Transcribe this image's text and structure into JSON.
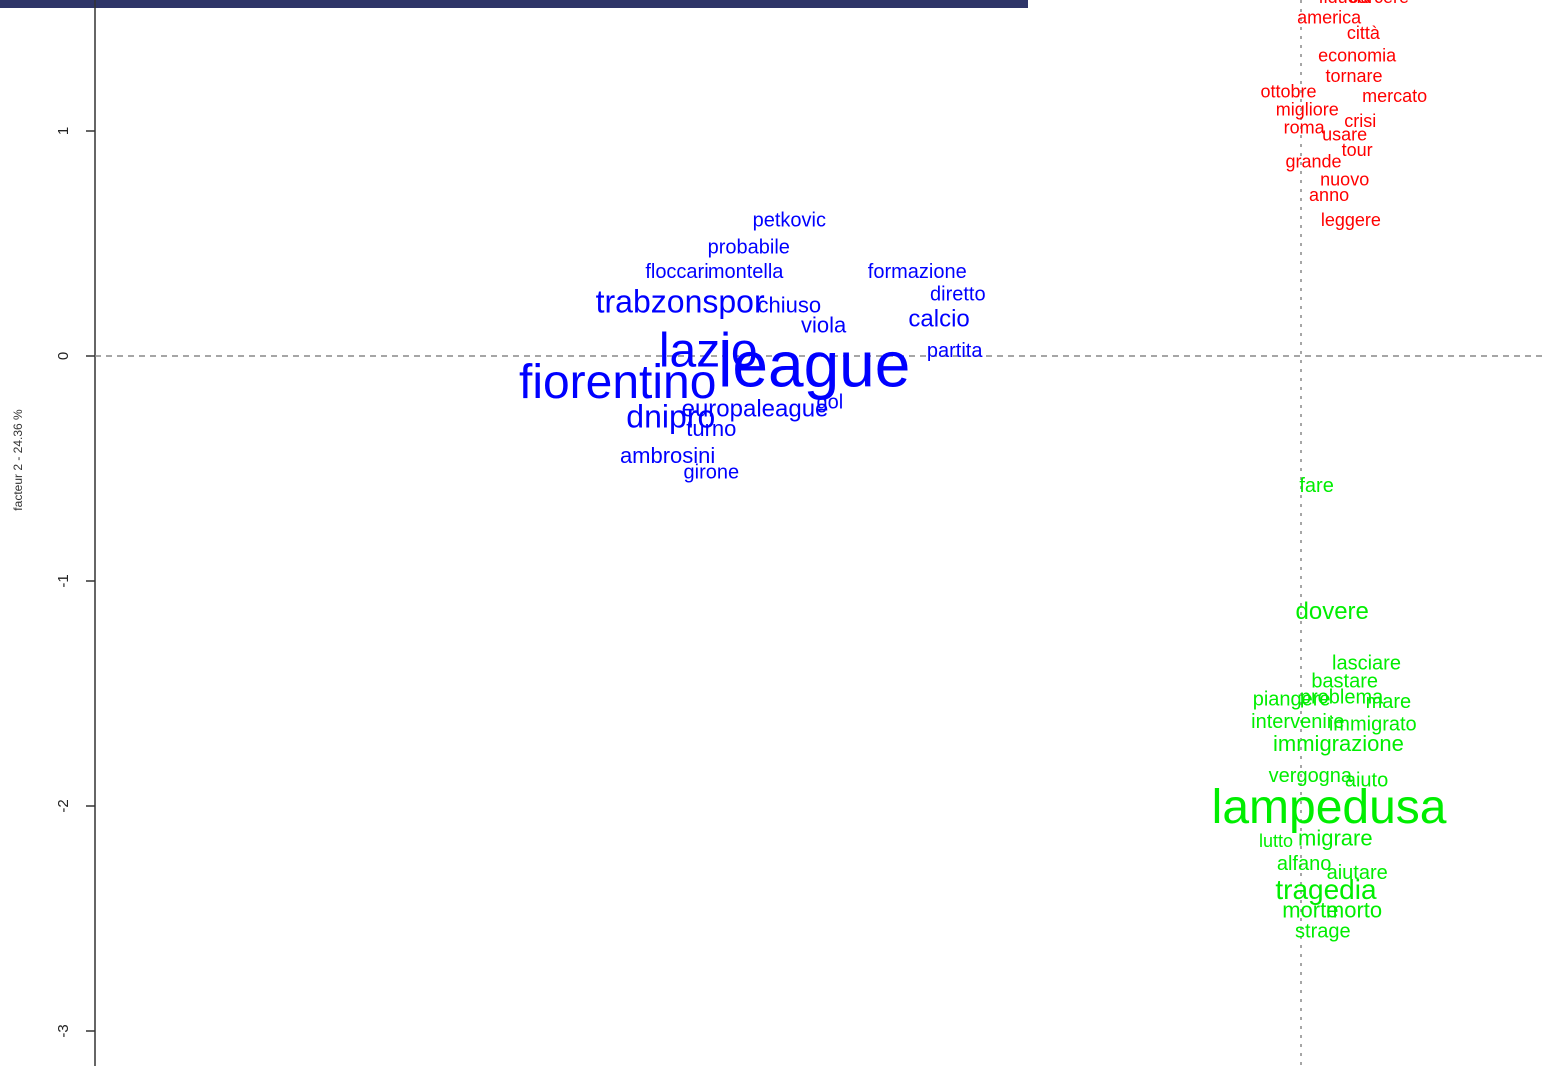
{
  "chart_data": {
    "type": "scatter",
    "subtype": "word-map",
    "title": "",
    "xlabel": "",
    "ylabel": "facteur 2 - 24.36 %",
    "ylim": [
      -3.2,
      1.6
    ],
    "xlim": [
      -2.8,
      1.1
    ],
    "yticks": [
      1,
      0,
      -1,
      -2,
      -3
    ],
    "ytick_labels": [
      "1",
      "0",
      "-1",
      "-2",
      "-3"
    ],
    "reference_lines": {
      "x": 0,
      "y": 0,
      "style": "dashed"
    },
    "grid": false,
    "legend": "none",
    "colors": {
      "sport": "#0000ff",
      "general": "#ff0000",
      "migration": "#00ee00",
      "axis": "#333333",
      "refline": "#888888",
      "topbar": "#2e3568"
    },
    "series": [
      {
        "color": "#0000ff",
        "words": [
          {
            "text": "petkovic",
            "x": -1.64,
            "y": 0.6,
            "size": 20
          },
          {
            "text": "probabile",
            "x": -1.77,
            "y": 0.48,
            "size": 20
          },
          {
            "text": "floccari",
            "x": -2.0,
            "y": 0.37,
            "size": 20
          },
          {
            "text": "montella",
            "x": -1.78,
            "y": 0.37,
            "size": 20
          },
          {
            "text": "formazione",
            "x": -1.23,
            "y": 0.37,
            "size": 20
          },
          {
            "text": "trabzonspor",
            "x": -1.99,
            "y": 0.23,
            "size": 32
          },
          {
            "text": "chiuso",
            "x": -1.64,
            "y": 0.22,
            "size": 22
          },
          {
            "text": "diretto",
            "x": -1.1,
            "y": 0.27,
            "size": 20
          },
          {
            "text": "calcio",
            "x": -1.16,
            "y": 0.16,
            "size": 24
          },
          {
            "text": "viola",
            "x": -1.53,
            "y": 0.13,
            "size": 22
          },
          {
            "text": "lazio",
            "x": -1.9,
            "y": 0.01,
            "size": 48
          },
          {
            "text": "league",
            "x": -1.56,
            "y": -0.06,
            "size": 64
          },
          {
            "text": "partita",
            "x": -1.11,
            "y": 0.02,
            "size": 20
          },
          {
            "text": "fiorentino",
            "x": -2.19,
            "y": -0.13,
            "size": 48
          },
          {
            "text": "dnipro",
            "x": -2.02,
            "y": -0.28,
            "size": 32
          },
          {
            "text": "europaleague",
            "x": -1.75,
            "y": -0.24,
            "size": 24
          },
          {
            "text": "gol",
            "x": -1.51,
            "y": -0.21,
            "size": 20
          },
          {
            "text": "turno",
            "x": -1.89,
            "y": -0.33,
            "size": 22
          },
          {
            "text": "ambrosini",
            "x": -2.03,
            "y": -0.45,
            "size": 22
          },
          {
            "text": "girone",
            "x": -1.89,
            "y": -0.52,
            "size": 20
          }
        ]
      },
      {
        "color": "#ff0000",
        "words": [
          {
            "text": "fiducia",
            "x": 0.14,
            "y": 1.59,
            "size": 18
          },
          {
            "text": "carcere",
            "x": 0.25,
            "y": 1.59,
            "size": 18
          },
          {
            "text": "america",
            "x": 0.09,
            "y": 1.5,
            "size": 18
          },
          {
            "text": "città",
            "x": 0.2,
            "y": 1.43,
            "size": 18
          },
          {
            "text": "economia",
            "x": 0.18,
            "y": 1.33,
            "size": 18
          },
          {
            "text": "tornare",
            "x": 0.17,
            "y": 1.24,
            "size": 18
          },
          {
            "text": "ottobre",
            "x": -0.04,
            "y": 1.17,
            "size": 18
          },
          {
            "text": "mercato",
            "x": 0.3,
            "y": 1.15,
            "size": 18
          },
          {
            "text": "migliore",
            "x": 0.02,
            "y": 1.09,
            "size": 18
          },
          {
            "text": "crisi",
            "x": 0.19,
            "y": 1.04,
            "size": 18
          },
          {
            "text": "roma",
            "x": 0.01,
            "y": 1.01,
            "size": 18
          },
          {
            "text": "usare",
            "x": 0.14,
            "y": 0.98,
            "size": 18
          },
          {
            "text": "tour",
            "x": 0.18,
            "y": 0.91,
            "size": 18
          },
          {
            "text": "grande",
            "x": 0.04,
            "y": 0.86,
            "size": 18
          },
          {
            "text": "nuovo",
            "x": 0.14,
            "y": 0.78,
            "size": 18
          },
          {
            "text": "anno",
            "x": 0.09,
            "y": 0.71,
            "size": 18
          },
          {
            "text": "leggere",
            "x": 0.16,
            "y": 0.6,
            "size": 18
          }
        ]
      },
      {
        "color": "#00ee00",
        "words": [
          {
            "text": "fare",
            "x": 0.05,
            "y": -0.58,
            "size": 20
          },
          {
            "text": "dovere",
            "x": 0.1,
            "y": -1.14,
            "size": 24
          },
          {
            "text": "lasciare",
            "x": 0.21,
            "y": -1.37,
            "size": 20
          },
          {
            "text": "bastare",
            "x": 0.14,
            "y": -1.45,
            "size": 20
          },
          {
            "text": "piangere",
            "x": -0.03,
            "y": -1.53,
            "size": 20
          },
          {
            "text": "problema",
            "x": 0.13,
            "y": -1.52,
            "size": 20
          },
          {
            "text": "mare",
            "x": 0.28,
            "y": -1.54,
            "size": 20
          },
          {
            "text": "intervenire",
            "x": -0.01,
            "y": -1.63,
            "size": 20
          },
          {
            "text": "immigrato",
            "x": 0.23,
            "y": -1.64,
            "size": 20
          },
          {
            "text": "immigrazione",
            "x": 0.12,
            "y": -1.73,
            "size": 22
          },
          {
            "text": "vergogna",
            "x": 0.03,
            "y": -1.87,
            "size": 20
          },
          {
            "text": "aiuto",
            "x": 0.21,
            "y": -1.89,
            "size": 20
          },
          {
            "text": "lampedusa",
            "x": 0.09,
            "y": -2.02,
            "size": 48
          },
          {
            "text": "lutto",
            "x": -0.08,
            "y": -2.16,
            "size": 18
          },
          {
            "text": "migrare",
            "x": 0.11,
            "y": -2.15,
            "size": 22
          },
          {
            "text": "alfano",
            "x": 0.01,
            "y": -2.26,
            "size": 20
          },
          {
            "text": "aiutare",
            "x": 0.18,
            "y": -2.3,
            "size": 20
          },
          {
            "text": "tragedia",
            "x": 0.08,
            "y": -2.38,
            "size": 28
          },
          {
            "text": "morte",
            "x": 0.03,
            "y": -2.47,
            "size": 22
          },
          {
            "text": "morto",
            "x": 0.17,
            "y": -2.47,
            "size": 22
          },
          {
            "text": "strage",
            "x": 0.07,
            "y": -2.56,
            "size": 20
          }
        ]
      }
    ]
  }
}
